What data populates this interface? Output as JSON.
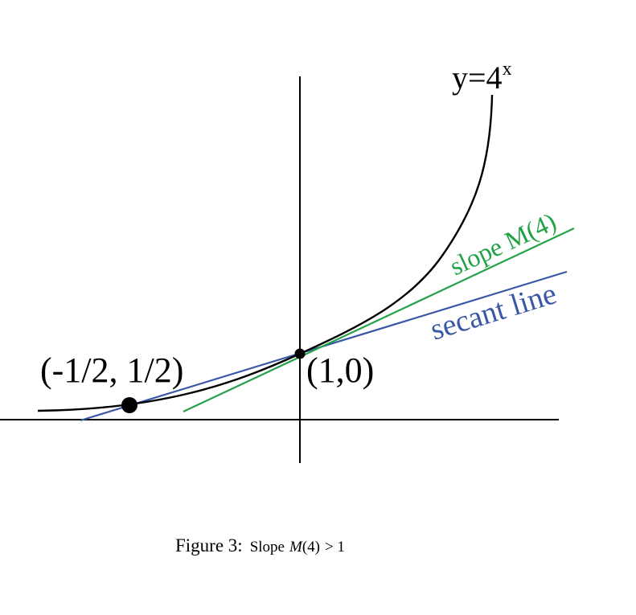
{
  "diagram": {
    "curve_label_base": "y=4",
    "curve_label_exp": "x",
    "point_left_label": "(-1/2, 1/2)",
    "point_center_label": "(1,0)",
    "slope_label": "slope M(4)",
    "secant_label": "secant line",
    "colors": {
      "curve": "#000000",
      "axes": "#000000",
      "tangent": "#22a245",
      "secant": "#3a58a6",
      "points": "#000000"
    }
  },
  "caption": {
    "prefix": "Figure 3:",
    "slope_word": "Slope",
    "func": "M",
    "arg": "(4)",
    "relation": "> 1"
  }
}
